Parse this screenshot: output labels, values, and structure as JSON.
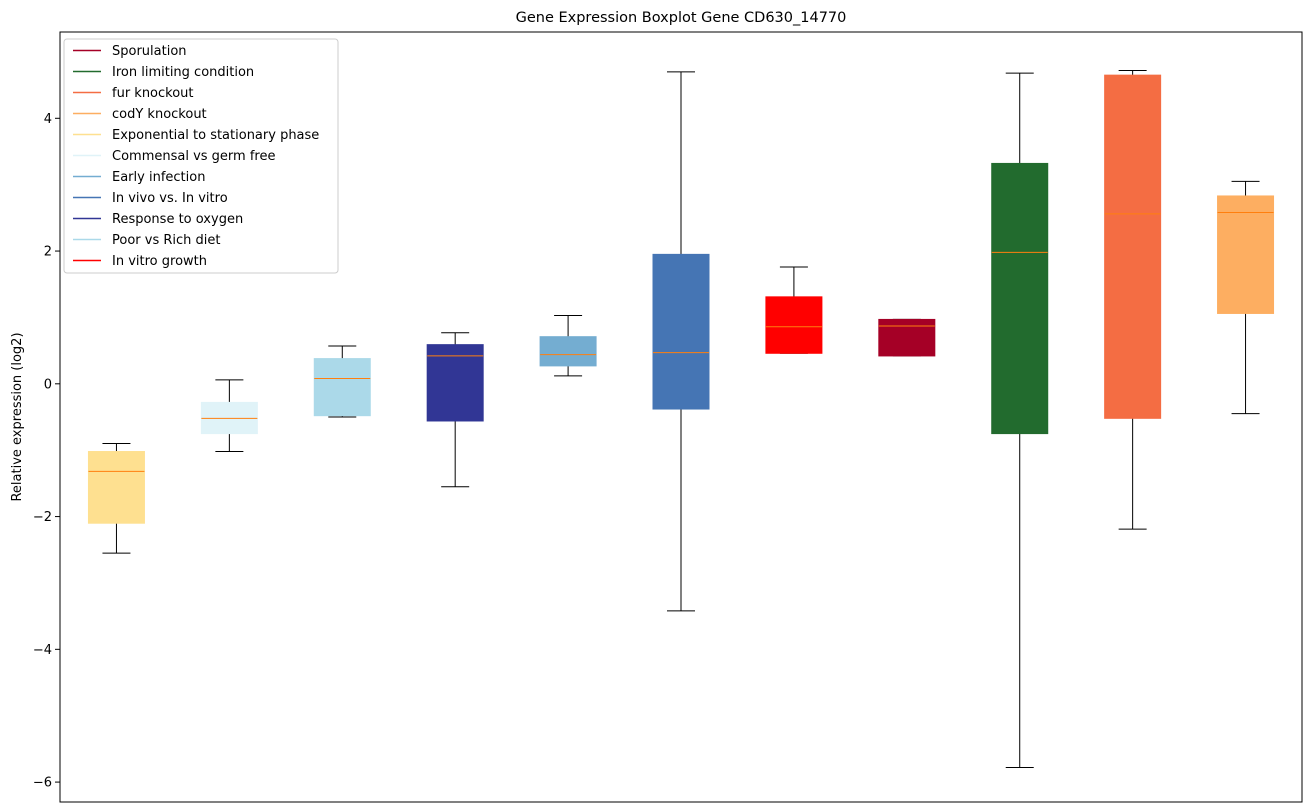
{
  "chart_data": {
    "type": "boxplot",
    "title": "Gene Expression Boxplot Gene CD630_14770",
    "xlabel": "",
    "ylabel": "Relative expression (log2)",
    "ylim": [
      -6.3,
      5.3
    ],
    "yticks": [
      -6,
      -4,
      -2,
      0,
      2,
      4
    ],
    "ytick_labels": [
      "−6",
      "−4",
      "−2",
      "0",
      "2",
      "4"
    ],
    "grid": false,
    "legend_position": "upper-left",
    "legend": [
      {
        "label": "Sporulation",
        "color": "#a50026"
      },
      {
        "label": "Iron limiting condition",
        "color": "#226b2e"
      },
      {
        "label": "fur knockout",
        "color": "#f46d43"
      },
      {
        "label": "codY knockout",
        "color": "#fdae61"
      },
      {
        "label": "Exponential to stationary phase",
        "color": "#fee090"
      },
      {
        "label": "Commensal vs germ free",
        "color": "#e0f3f8"
      },
      {
        "label": "Early infection",
        "color": "#74add1"
      },
      {
        "label": "In vivo vs. In vitro",
        "color": "#4575b4"
      },
      {
        "label": "Response to oxygen",
        "color": "#313695"
      },
      {
        "label": "Poor vs Rich diet",
        "color": "#abd9e9"
      },
      {
        "label": "In vitro growth",
        "color": "#ff0000"
      }
    ],
    "boxes": [
      {
        "group": "Exponential to stationary phase",
        "color": "#fee090",
        "whisker_low": -2.55,
        "q1": -2.1,
        "median": -1.32,
        "q3": -1.02,
        "whisker_high": -0.9
      },
      {
        "group": "Commensal vs germ free",
        "color": "#e0f3f8",
        "whisker_low": -1.02,
        "q1": -0.75,
        "median": -0.52,
        "q3": -0.28,
        "whisker_high": 0.06
      },
      {
        "group": "Poor vs Rich diet",
        "color": "#abd9e9",
        "whisker_low": -0.5,
        "q1": -0.48,
        "median": 0.08,
        "q3": 0.38,
        "whisker_high": 0.57
      },
      {
        "group": "Response to oxygen",
        "color": "#313695",
        "whisker_low": -1.55,
        "q1": -0.56,
        "median": 0.42,
        "q3": 0.59,
        "whisker_high": 0.77
      },
      {
        "group": "Early infection",
        "color": "#74add1",
        "whisker_low": 0.12,
        "q1": 0.27,
        "median": 0.44,
        "q3": 0.71,
        "whisker_high": 1.03
      },
      {
        "group": "In vivo vs. In vitro",
        "color": "#4575b4",
        "whisker_low": -3.42,
        "q1": -0.38,
        "median": 0.47,
        "q3": 1.95,
        "whisker_high": 4.7
      },
      {
        "group": "In vitro growth",
        "color": "#ff0000",
        "whisker_low": 0.46,
        "q1": 0.46,
        "median": 0.86,
        "q3": 1.31,
        "whisker_high": 1.76
      },
      {
        "group": "Sporulation",
        "color": "#a50026",
        "whisker_low": 0.42,
        "q1": 0.42,
        "median": 0.87,
        "q3": 0.97,
        "whisker_high": 0.97
      },
      {
        "group": "Iron limiting condition",
        "color": "#226b2e",
        "whisker_low": -5.78,
        "q1": -0.75,
        "median": 1.98,
        "q3": 3.32,
        "whisker_high": 4.68
      },
      {
        "group": "fur knockout",
        "color": "#f46d43",
        "whisker_low": -2.19,
        "q1": -0.52,
        "median": 2.56,
        "q3": 4.65,
        "whisker_high": 4.72
      },
      {
        "group": "codY knockout",
        "color": "#fdae61",
        "whisker_low": -0.45,
        "q1": 1.06,
        "median": 2.58,
        "q3": 2.83,
        "whisker_high": 3.05
      }
    ],
    "median_color": "#ff7f0e"
  }
}
